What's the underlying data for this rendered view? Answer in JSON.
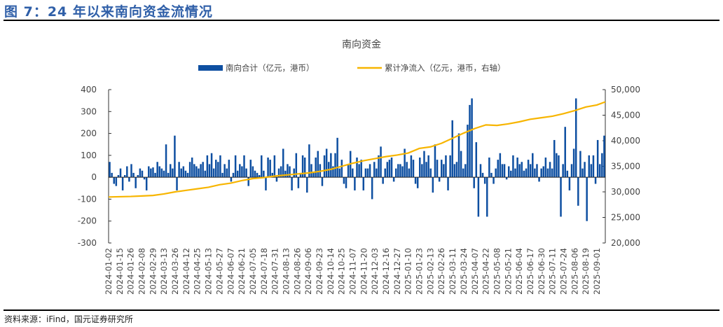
{
  "figure_title": "图 7：24 年以来南向资金流情况",
  "source": "资料来源：iFind，国元证券研究所",
  "chart_data": {
    "type": "bar+line",
    "title": "南向资金",
    "legend_position": "top",
    "grid": false,
    "colors": {
      "bar": "#0e4fa1",
      "line": "#f7b500"
    },
    "y_left": {
      "range": [
        -300,
        400
      ],
      "ticks": [
        "400",
        "300",
        "200",
        "100",
        "0",
        "-100",
        "-200",
        "-300"
      ],
      "tick_values": [
        400,
        300,
        200,
        100,
        0,
        -100,
        -200,
        -300
      ]
    },
    "y_right": {
      "range": [
        20000,
        50000
      ],
      "ticks": [
        "50,000",
        "45,000",
        "40,000",
        "35,000",
        "30,000",
        "25,000",
        "20,000"
      ],
      "tick_values": [
        50000,
        45000,
        40000,
        35000,
        30000,
        25000,
        20000
      ]
    },
    "x_ticks": [
      "2024-01-02",
      "2024-01-15",
      "2024-01-26",
      "2024-02-08",
      "2024-02-29",
      "2024-03-13",
      "2024-03-26",
      "2024-04-12",
      "2024-04-25",
      "2024-05-13",
      "2024-05-27",
      "2024-06-07",
      "2024-06-21",
      "2024-07-05",
      "2024-07-18",
      "2024-07-31",
      "2024-08-13",
      "2024-08-26",
      "2024-09-06",
      "2024-09-23",
      "2024-10-14",
      "2024-10-25",
      "2024-11-07",
      "2024-11-20",
      "2024-12-03",
      "2024-12-16",
      "2024-12-27",
      "2025-01-10",
      "2025-01-23",
      "2025-02-13",
      "2025-02-26",
      "2025-03-11",
      "2025-03-24",
      "2025-04-07",
      "2025-04-22",
      "2025-05-08",
      "2025-05-21",
      "2025-06-04",
      "2025-06-17",
      "2025-06-30",
      "2025-07-11",
      "2025-07-24",
      "2025-08-06",
      "2025-08-19",
      "2025-09-01"
    ],
    "series": [
      {
        "name": "南向合计（亿元，港币）",
        "type": "bar",
        "axis": "left",
        "values": [
          70,
          20,
          -30,
          -40,
          10,
          40,
          -60,
          10,
          50,
          -20,
          60,
          20,
          -50,
          10,
          40,
          30,
          -10,
          -60,
          50,
          40,
          45,
          20,
          70,
          50,
          40,
          30,
          150,
          20,
          60,
          40,
          190,
          -60,
          70,
          40,
          50,
          30,
          20,
          70,
          90,
          60,
          50,
          40,
          60,
          70,
          30,
          100,
          60,
          110,
          40,
          80,
          70,
          100,
          20,
          60,
          40,
          80,
          -20,
          20,
          100,
          30,
          60,
          50,
          100,
          40,
          -40,
          80,
          50,
          30,
          20,
          10,
          100,
          30,
          -60,
          90,
          80,
          20,
          100,
          -20,
          40,
          50,
          130,
          30,
          60,
          50,
          -60,
          40,
          110,
          -50,
          20,
          100,
          90,
          -70,
          150,
          60,
          20,
          90,
          120,
          60,
          -40,
          100,
          130,
          70,
          110,
          50,
          110,
          180,
          40,
          80,
          -30,
          -50,
          60,
          120,
          40,
          -60,
          90,
          60,
          80,
          -60,
          40,
          40,
          60,
          -100,
          70,
          40,
          100,
          140,
          -30,
          40,
          70,
          80,
          90,
          -20,
          40,
          60,
          60,
          50,
          130,
          70,
          40,
          100,
          80,
          -30,
          -50,
          90,
          60,
          120,
          70,
          100,
          40,
          -70,
          150,
          80,
          -20,
          80,
          60,
          100,
          -60,
          100,
          260,
          60,
          70,
          200,
          120,
          40,
          60,
          240,
          330,
          360,
          -50,
          160,
          -180,
          60,
          20,
          -30,
          -180,
          90,
          20,
          -30,
          40,
          80,
          110,
          60,
          60,
          -10,
          50,
          30,
          100,
          40,
          90,
          60,
          70,
          30,
          40,
          80,
          60,
          110,
          40,
          60,
          -20,
          40,
          50,
          90,
          40,
          70,
          40,
          170,
          110,
          100,
          -180,
          60,
          230,
          30,
          -60,
          60,
          130,
          360,
          -130,
          120,
          40,
          70,
          -200,
          100,
          60,
          100,
          -30,
          170,
          60,
          110,
          190
        ]
      },
      {
        "name": "累计净流入（亿元，港币，右轴）",
        "type": "line",
        "axis": "right",
        "x": [
          "2024-01-02",
          "2024-01-15",
          "2024-01-26",
          "2024-02-08",
          "2024-02-29",
          "2024-03-13",
          "2024-03-26",
          "2024-04-12",
          "2024-04-25",
          "2024-05-13",
          "2024-05-27",
          "2024-06-07",
          "2024-06-21",
          "2024-07-05",
          "2024-07-18",
          "2024-07-31",
          "2024-08-13",
          "2024-08-26",
          "2024-09-06",
          "2024-09-23",
          "2024-10-14",
          "2024-10-25",
          "2024-11-07",
          "2024-11-20",
          "2024-12-03",
          "2024-12-16",
          "2024-12-27",
          "2025-01-10",
          "2025-01-23",
          "2025-02-13",
          "2025-02-26",
          "2025-03-11",
          "2025-03-24",
          "2025-04-07",
          "2025-04-22",
          "2025-05-08",
          "2025-05-21",
          "2025-06-04",
          "2025-06-17",
          "2025-06-30",
          "2025-07-11",
          "2025-07-24",
          "2025-08-06",
          "2025-08-19",
          "2025-09-01"
        ],
        "values": [
          29000,
          29050,
          29100,
          29200,
          29300,
          29600,
          30000,
          30300,
          30600,
          30900,
          31400,
          31700,
          32200,
          32600,
          32800,
          33100,
          33300,
          33500,
          33700,
          34000,
          34400,
          35000,
          35600,
          36100,
          36500,
          36900,
          37200,
          37600,
          38500,
          38800,
          39500,
          40500,
          41500,
          42400,
          43100,
          43000,
          43300,
          43700,
          44200,
          44500,
          44800,
          45300,
          45900,
          46600,
          47000
        ],
        "last_value": 47600
      }
    ]
  }
}
